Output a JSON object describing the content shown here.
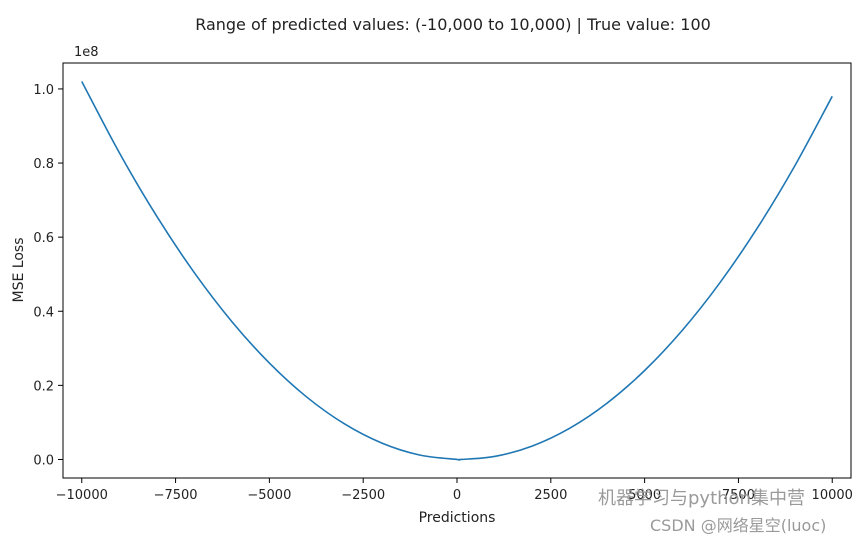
{
  "chart_data": {
    "type": "line",
    "title": "Range of predicted values: (-10,000 to 10,000) | True value: 100",
    "xlabel": "Predictions",
    "ylabel": "MSE Loss",
    "y_offset_label": "1e8",
    "xlim": [
      -10500,
      10500
    ],
    "ylim": [
      -0.05,
      1.07
    ],
    "x_ticks": [
      -10000,
      -7500,
      -5000,
      -2500,
      0,
      2500,
      5000,
      7500,
      10000
    ],
    "x_tick_labels": [
      "−10000",
      "−7500",
      "−5000",
      "−2500",
      "0",
      "2500",
      "5000",
      "7500",
      "10000"
    ],
    "y_ticks": [
      0.0,
      0.2,
      0.4,
      0.6,
      0.8,
      1.0
    ],
    "y_tick_labels": [
      "0.0",
      "0.2",
      "0.4",
      "0.6",
      "0.8",
      "1.0"
    ],
    "grid": false,
    "series": [
      {
        "color": "#1f77b4",
        "x": [
          -10000,
          -9000,
          -8000,
          -7000,
          -6000,
          -5000,
          -4000,
          -3000,
          -2000,
          -1000,
          0,
          100,
          1000,
          2000,
          3000,
          4000,
          5000,
          6000,
          7000,
          8000,
          9000,
          10000
        ],
        "y": [
          1.0201,
          0.8281,
          0.6561,
          0.5041,
          0.3721,
          0.2601,
          0.1681,
          0.0961,
          0.0441,
          0.0121,
          0.0001,
          0.0,
          0.0081,
          0.0361,
          0.0841,
          0.1521,
          0.2401,
          0.3481,
          0.4761,
          0.6241,
          0.7921,
          0.9801
        ]
      }
    ]
  },
  "watermark": {
    "line1": "机器学习与python集中营",
    "line2": "CSDN @网络星空(luoc)"
  }
}
